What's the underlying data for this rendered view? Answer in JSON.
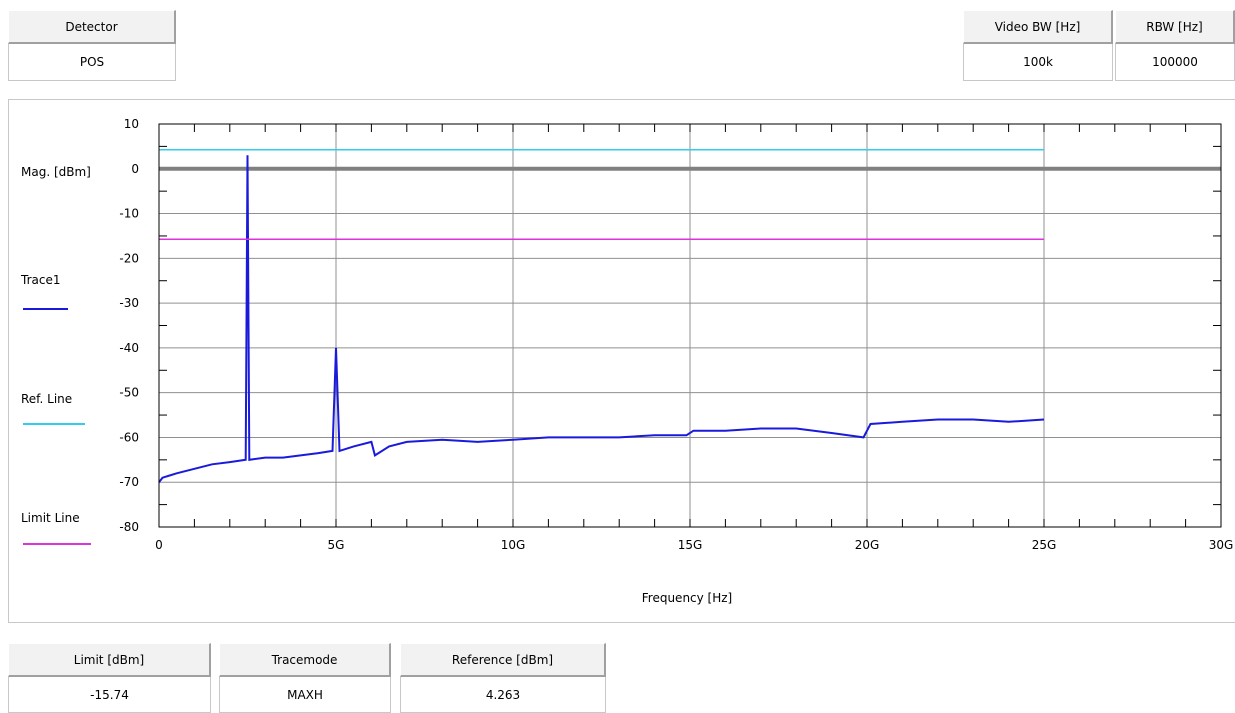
{
  "detector": {
    "label": "Detector",
    "value": "POS"
  },
  "video_bw": {
    "label": "Video BW [Hz]",
    "value": "100k"
  },
  "rbw": {
    "label": "RBW [Hz]",
    "value": "100000"
  },
  "limit": {
    "label": "Limit [dBm]",
    "value": "-15.74"
  },
  "tracemode": {
    "label": "Tracemode",
    "value": "MAXH"
  },
  "reference": {
    "label": "Reference [dBm]",
    "value": "4.263"
  },
  "legend": {
    "trace1": "Trace1",
    "ref_line": "Ref. Line",
    "limit_line": "Limit Line"
  },
  "colors": {
    "trace1": "#1a1adc",
    "ref_line": "#33ccee",
    "limit_line": "#dd33dd",
    "zero_line": "#808080",
    "grid": "#909090"
  },
  "chart_data": {
    "type": "line",
    "xlabel": "Frequency [Hz]",
    "ylabel": "Mag. [dBm]",
    "xlim": [
      0,
      30000000000
    ],
    "ylim": [
      -80,
      10
    ],
    "x_ticks": [
      0,
      5000000000,
      10000000000,
      15000000000,
      20000000000,
      25000000000,
      30000000000
    ],
    "x_tick_labels": [
      "0",
      "5G",
      "10G",
      "15G",
      "20G",
      "25G",
      "30G"
    ],
    "y_ticks": [
      10,
      0,
      -10,
      -20,
      -30,
      -40,
      -50,
      -60,
      -70,
      -80
    ],
    "y_tick_labels": [
      "10",
      "0",
      "-10",
      "-20",
      "-30",
      "-40",
      "-50",
      "-60",
      "-70",
      "-80"
    ],
    "grid": true,
    "legend_position": "left",
    "series": [
      {
        "name": "Trace1",
        "x": [
          0,
          100000000,
          300000000,
          500000000,
          1000000000,
          1500000000,
          2000000000,
          2450000000,
          2500000000,
          2550000000,
          3000000000,
          3500000000,
          4000000000,
          4500000000,
          4900000000,
          5000000000,
          5100000000,
          5500000000,
          6000000000,
          6100000000,
          6500000000,
          7000000000,
          8000000000,
          9000000000,
          10000000000,
          11000000000,
          12000000000,
          13000000000,
          14000000000,
          14900000000,
          15100000000,
          16000000000,
          17000000000,
          18000000000,
          19000000000,
          19900000000,
          20100000000,
          21000000000,
          22000000000,
          23000000000,
          24000000000,
          25000000000
        ],
        "y": [
          -70,
          -69,
          -68.5,
          -68,
          -67,
          -66,
          -65.5,
          -65,
          3,
          -65,
          -64.5,
          -64.5,
          -64,
          -63.5,
          -63,
          -40,
          -63,
          -62,
          -61,
          -64,
          -62,
          -61,
          -60.5,
          -61,
          -60.5,
          -60,
          -60,
          -60,
          -59.5,
          -59.5,
          -58.5,
          -58.5,
          -58,
          -58,
          -59,
          -60,
          -57,
          -56.5,
          -56,
          -56,
          -56.5,
          -56
        ]
      },
      {
        "name": "Ref. Line",
        "x": [
          0,
          25000000000
        ],
        "y": [
          4.263,
          4.263
        ]
      },
      {
        "name": "Limit Line",
        "x": [
          0,
          25000000000
        ],
        "y": [
          -15.74,
          -15.74
        ]
      }
    ]
  }
}
